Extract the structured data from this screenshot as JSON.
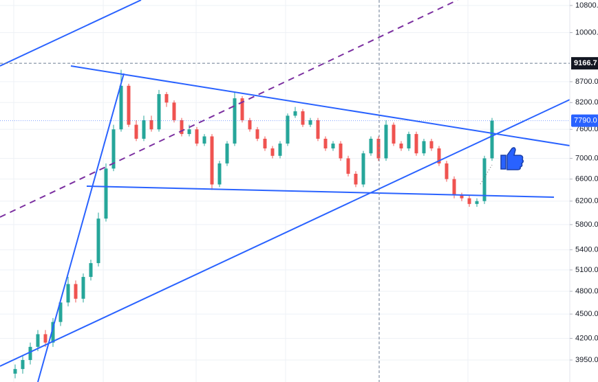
{
  "chart_data": {
    "type": "candlestick",
    "log_scale": true,
    "grid": true,
    "up_color": "#26a69a",
    "down_color": "#ef5350",
    "ylim": [
      3711,
      10970
    ],
    "yticks": [
      {
        "value": 3950,
        "label": "3950.0"
      },
      {
        "value": 4200,
        "label": "4200.0"
      },
      {
        "value": 4500,
        "label": "4500.0"
      },
      {
        "value": 4800,
        "label": "4800.0"
      },
      {
        "value": 5100,
        "label": "5100.0"
      },
      {
        "value": 5400,
        "label": "5400.0"
      },
      {
        "value": 5800,
        "label": "5800.0"
      },
      {
        "value": 6200,
        "label": "6200.0"
      },
      {
        "value": 6600,
        "label": "6600.0"
      },
      {
        "value": 7000,
        "label": "7000.0"
      },
      {
        "value": 7600,
        "label": "7600.0"
      },
      {
        "value": 8200,
        "label": "8200.0"
      },
      {
        "value": 8700,
        "label": "8700.0"
      },
      {
        "value": 10000,
        "label": "10000."
      },
      {
        "value": 10800,
        "label": "10800."
      }
    ],
    "crosshair_price": 9166.7,
    "last_price": {
      "value": 7790,
      "label": "7790.0"
    },
    "open": [
      3800,
      3850,
      3950,
      4100,
      4250,
      4150,
      4400,
      4650,
      4900,
      4700,
      5000,
      5200,
      5900,
      6800,
      7600,
      8600,
      7700,
      7400,
      7800,
      7600,
      8400,
      8200,
      7800,
      7500,
      7600,
      7300,
      7450,
      6500,
      6900,
      7300,
      8300,
      7800,
      7600,
      7400,
      7200,
      7050,
      7300,
      7900,
      8000,
      7700,
      7800,
      7400,
      7200,
      7300,
      7000,
      6700,
      6500,
      7100,
      7400,
      7000,
      7700,
      7300,
      7200,
      7500,
      7100,
      7350,
      7200,
      6900,
      6600,
      6300,
      6250,
      6150,
      6200,
      7000
    ],
    "high": [
      3900,
      4000,
      4150,
      4300,
      4300,
      4450,
      4700,
      5000,
      4950,
      5050,
      5250,
      6000,
      6900,
      7700,
      9000,
      8650,
      7800,
      7900,
      7900,
      8500,
      8450,
      8250,
      7850,
      7700,
      7650,
      7500,
      7500,
      6950,
      7350,
      8450,
      8350,
      7850,
      7650,
      7450,
      7250,
      7350,
      7950,
      8100,
      8050,
      7850,
      7850,
      7450,
      7350,
      7350,
      7050,
      6750,
      7150,
      7450,
      7450,
      7800,
      7750,
      7350,
      7550,
      7550,
      7400,
      7400,
      7250,
      6950,
      6650,
      6350,
      6300,
      6250,
      7050,
      7850
    ],
    "low": [
      3750,
      3800,
      3900,
      4050,
      4100,
      4100,
      4350,
      4600,
      4650,
      4650,
      4950,
      5150,
      5850,
      6750,
      7550,
      7650,
      7350,
      7350,
      7550,
      7550,
      8100,
      7750,
      7450,
      7450,
      7250,
      7250,
      6400,
      6450,
      6850,
      7250,
      7750,
      7550,
      7350,
      7150,
      7000,
      7000,
      7250,
      7850,
      7650,
      7650,
      7350,
      7150,
      7150,
      6950,
      6650,
      6450,
      6450,
      7050,
      6950,
      6950,
      7250,
      7150,
      7150,
      7050,
      7050,
      7150,
      6850,
      6550,
      6250,
      6200,
      6100,
      6100,
      6150,
      6950
    ],
    "close": [
      3850,
      3950,
      4100,
      4250,
      4150,
      4400,
      4650,
      4900,
      4700,
      5000,
      5200,
      5900,
      6800,
      7600,
      8600,
      7700,
      7400,
      7800,
      7600,
      8400,
      8200,
      7800,
      7500,
      7600,
      7300,
      7450,
      6500,
      6900,
      7300,
      8300,
      7800,
      7600,
      7400,
      7200,
      7050,
      7300,
      7900,
      8000,
      7700,
      7800,
      7400,
      7200,
      7300,
      7000,
      6700,
      6500,
      7100,
      7400,
      7000,
      7700,
      7300,
      7200,
      7500,
      7100,
      7350,
      7200,
      6900,
      6600,
      6300,
      6250,
      6150,
      6200,
      7000,
      7790
    ]
  }
}
